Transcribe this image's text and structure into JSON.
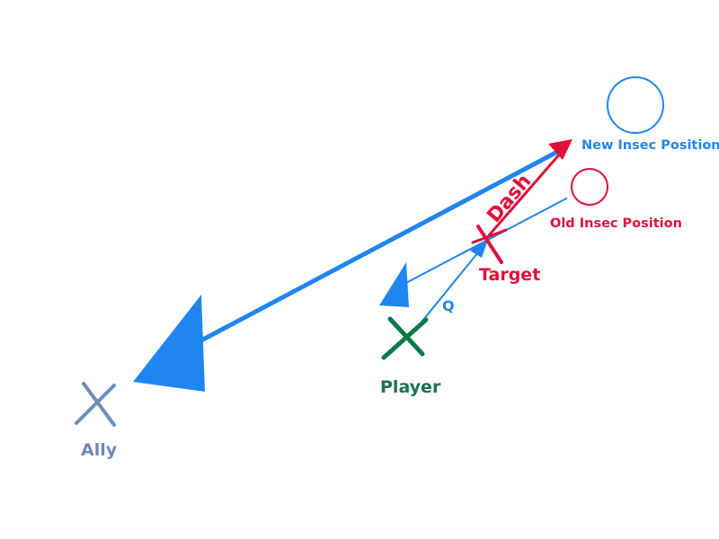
{
  "labels": {
    "new_insec": "New Insec Position",
    "old_insec": "Old Insec Position",
    "dash": "Dash",
    "target": "Target",
    "q": "Q",
    "player": "Player",
    "ally": "Ally"
  },
  "colors": {
    "blue": "#1f86ef",
    "red": "#e0103a",
    "green": "#0b7a47",
    "ally": "#6f8db9",
    "label_green": "#187348",
    "label_ally": "#7088b5"
  }
}
